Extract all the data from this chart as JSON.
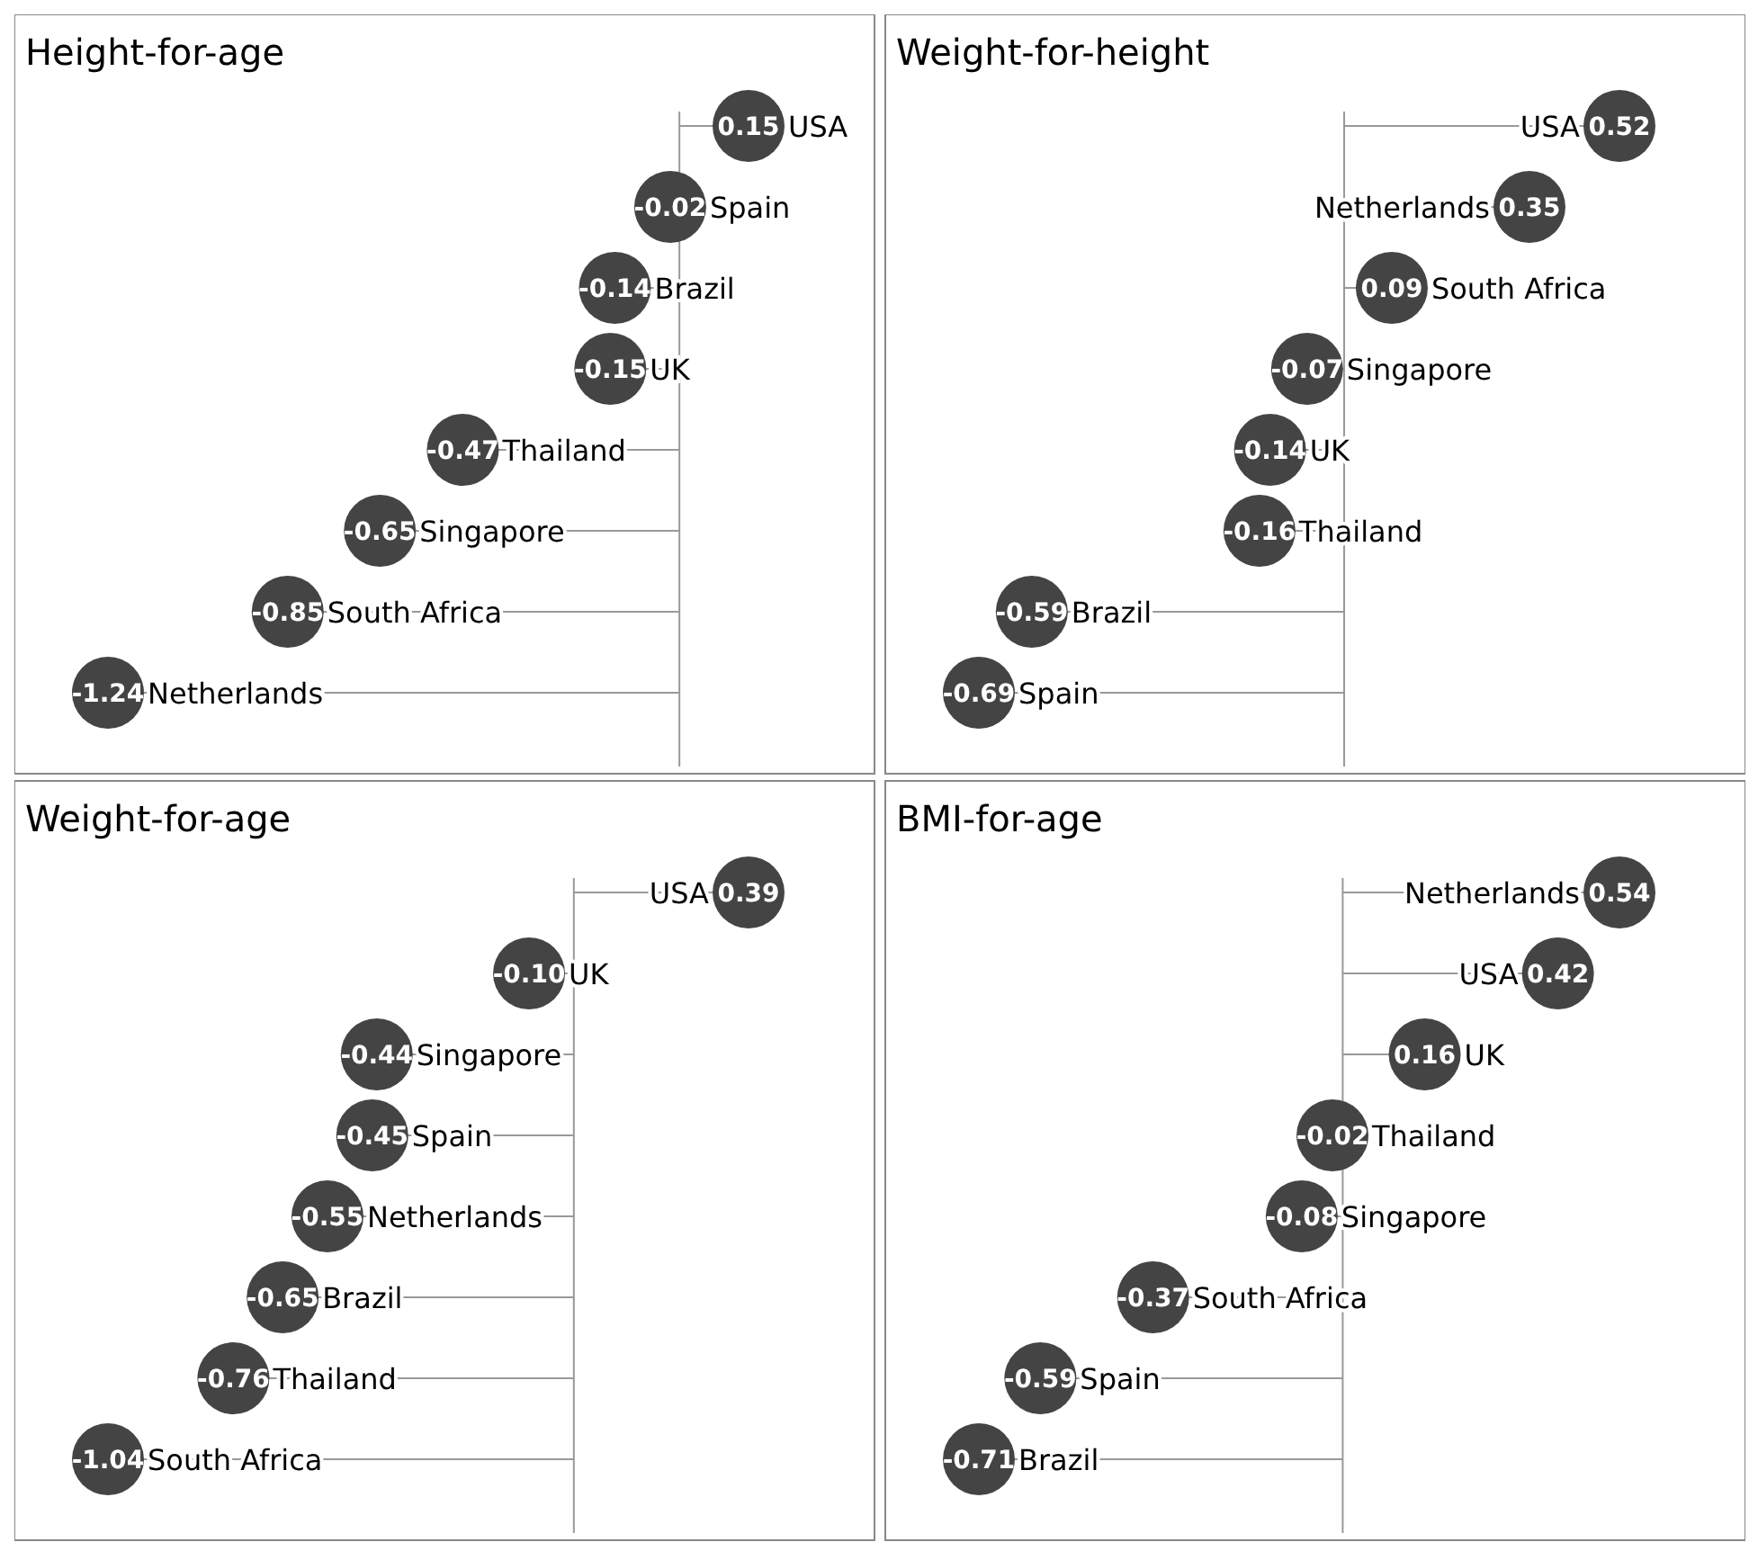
{
  "chart_data": [
    {
      "type": "lollipop",
      "orientation": "horizontal",
      "title": "Height-for-age",
      "color": "#444444",
      "categories": [
        "USA",
        "Spain",
        "Brazil",
        "UK",
        "Thailand",
        "Singapore",
        "South Africa",
        "Netherlands"
      ],
      "values": [
        0.15,
        -0.02,
        -0.14,
        -0.15,
        -0.47,
        -0.65,
        -0.85,
        -1.24
      ],
      "value_labels": [
        "0.15",
        "-0.02",
        "-0.14",
        "-0.15",
        "-0.47",
        "-0.65",
        "-0.85",
        "-1.24"
      ]
    },
    {
      "type": "lollipop",
      "orientation": "horizontal",
      "title": "Weight-for-height",
      "color": "#444444",
      "categories": [
        "USA",
        "Netherlands",
        "South Africa",
        "Singapore",
        "UK",
        "Thailand",
        "Brazil",
        "Spain"
      ],
      "values": [
        0.52,
        0.35,
        0.09,
        -0.07,
        -0.14,
        -0.16,
        -0.59,
        -0.69
      ],
      "value_labels": [
        "0.52",
        "0.35",
        "0.09",
        "-0.07",
        "-0.14",
        "-0.16",
        "-0.59",
        "-0.69"
      ]
    },
    {
      "type": "lollipop",
      "orientation": "horizontal",
      "title": "Weight-for-age",
      "color": "#444444",
      "categories": [
        "USA",
        "UK",
        "Singapore",
        "Spain",
        "Netherlands",
        "Brazil",
        "Thailand",
        "South Africa"
      ],
      "values": [
        0.39,
        -0.1,
        -0.44,
        -0.45,
        -0.55,
        -0.65,
        -0.76,
        -1.04
      ],
      "value_labels": [
        "0.39",
        "-0.10",
        "-0.44",
        "-0.45",
        "-0.55",
        "-0.65",
        "-0.76",
        "-1.04"
      ]
    },
    {
      "type": "lollipop",
      "orientation": "horizontal",
      "title": "BMI-for-age",
      "color": "#444444",
      "categories": [
        "Netherlands",
        "USA",
        "UK",
        "Thailand",
        "Singapore",
        "South Africa",
        "Spain",
        "Brazil"
      ],
      "values": [
        0.54,
        0.42,
        0.16,
        -0.02,
        -0.08,
        -0.37,
        -0.59,
        -0.71
      ],
      "value_labels": [
        "0.54",
        "0.42",
        "0.16",
        "-0.02",
        "-0.08",
        "-0.37",
        "-0.59",
        "-0.71"
      ]
    }
  ]
}
